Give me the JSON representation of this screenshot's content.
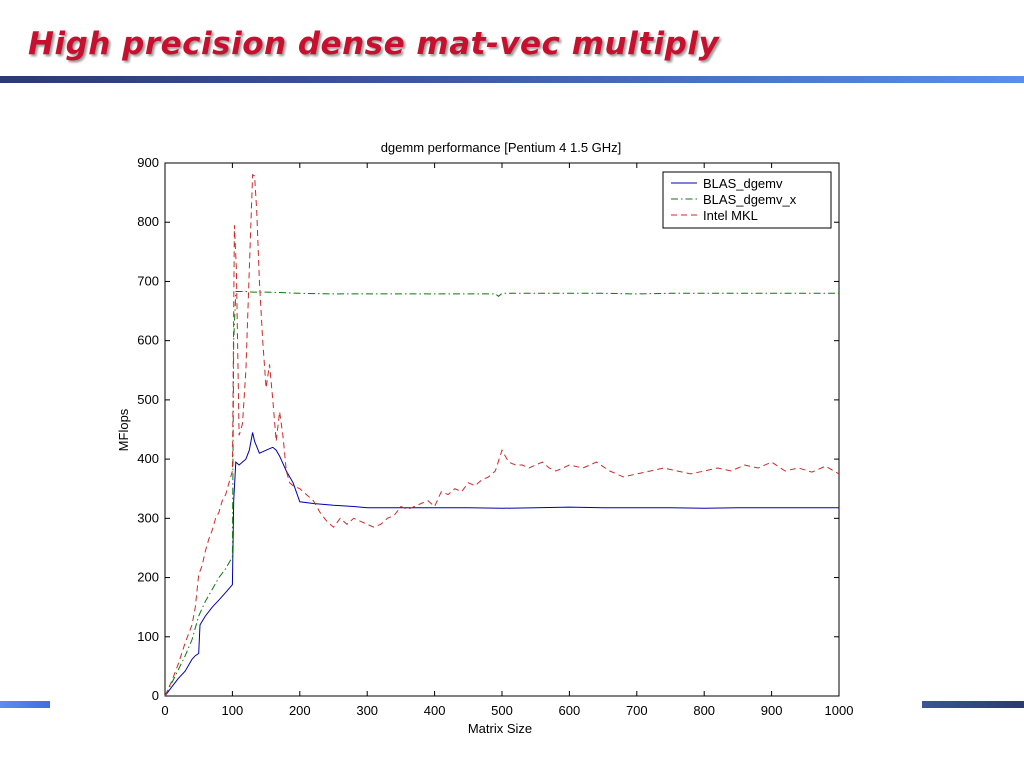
{
  "slide": {
    "title": "High precision dense mat-vec multiply",
    "accent_color": "#c8102e",
    "rule_color": "#2b3a6f"
  },
  "chart_data": {
    "type": "line",
    "title": "dgemm performance [Pentium 4 1.5 GHz]",
    "xlabel": "Matrix Size",
    "ylabel": "MFlops",
    "xlim": [
      0,
      1000
    ],
    "ylim": [
      0,
      900
    ],
    "xticks": [
      0,
      100,
      200,
      300,
      400,
      500,
      600,
      700,
      800,
      900,
      1000
    ],
    "yticks": [
      0,
      100,
      200,
      300,
      400,
      500,
      600,
      700,
      800,
      900
    ],
    "grid": false,
    "legend_position": "top-right",
    "series": [
      {
        "name": "BLAS_dgemv",
        "color": "#0000aa",
        "style": "solid",
        "x": [
          0,
          10,
          20,
          30,
          40,
          45,
          50,
          52,
          60,
          70,
          80,
          90,
          100,
          102,
          105,
          110,
          120,
          125,
          130,
          133,
          140,
          150,
          160,
          165,
          170,
          180,
          190,
          200,
          220,
          250,
          280,
          300,
          350,
          400,
          450,
          500,
          550,
          600,
          650,
          700,
          750,
          800,
          850,
          900,
          950,
          1000
        ],
        "y": [
          0,
          15,
          30,
          42,
          62,
          68,
          72,
          120,
          135,
          150,
          162,
          175,
          188,
          330,
          395,
          390,
          400,
          415,
          445,
          430,
          410,
          415,
          420,
          415,
          405,
          380,
          360,
          328,
          325,
          322,
          320,
          318,
          318,
          318,
          318,
          317,
          318,
          319,
          318,
          318,
          318,
          317,
          318,
          318,
          318,
          318
        ]
      },
      {
        "name": "BLAS_dgemv_x",
        "color": "#0a7a0a",
        "style": "dashdot",
        "x": [
          0,
          10,
          20,
          30,
          40,
          50,
          60,
          70,
          80,
          90,
          100,
          102,
          105,
          110,
          120,
          130,
          140,
          150,
          200,
          250,
          300,
          350,
          400,
          450,
          490,
          495,
          500,
          550,
          600,
          650,
          700,
          750,
          800,
          850,
          900,
          950,
          1000
        ],
        "y": [
          0,
          22,
          45,
          68,
          95,
          135,
          160,
          180,
          200,
          215,
          235,
          600,
          683,
          683,
          683,
          682,
          682,
          682,
          680,
          679,
          679,
          679,
          679,
          679,
          679,
          675,
          680,
          680,
          680,
          680,
          679,
          680,
          680,
          680,
          680,
          680,
          680
        ]
      },
      {
        "name": "Intel MKL",
        "color": "#cc2a2a",
        "style": "dashed",
        "x": [
          0,
          10,
          20,
          30,
          40,
          45,
          50,
          55,
          60,
          65,
          70,
          75,
          80,
          85,
          90,
          95,
          100,
          103,
          106,
          110,
          115,
          120,
          125,
          130,
          133,
          136,
          140,
          145,
          150,
          155,
          160,
          165,
          170,
          175,
          180,
          185,
          190,
          200,
          210,
          220,
          230,
          240,
          250,
          260,
          270,
          280,
          290,
          300,
          310,
          320,
          330,
          340,
          350,
          360,
          370,
          380,
          390,
          400,
          410,
          420,
          430,
          440,
          450,
          460,
          470,
          480,
          490,
          500,
          510,
          520,
          530,
          540,
          550,
          560,
          570,
          580,
          590,
          600,
          620,
          640,
          660,
          680,
          700,
          720,
          740,
          760,
          780,
          800,
          820,
          840,
          860,
          880,
          900,
          920,
          940,
          960,
          980,
          1000
        ],
        "y": [
          0,
          25,
          55,
          90,
          120,
          150,
          205,
          220,
          245,
          265,
          280,
          300,
          310,
          330,
          340,
          360,
          380,
          795,
          720,
          440,
          460,
          550,
          720,
          880,
          878,
          820,
          700,
          600,
          520,
          560,
          500,
          430,
          480,
          440,
          380,
          360,
          355,
          350,
          340,
          330,
          310,
          295,
          285,
          300,
          290,
          300,
          295,
          290,
          285,
          290,
          300,
          305,
          320,
          315,
          320,
          325,
          330,
          320,
          345,
          340,
          350,
          345,
          360,
          355,
          365,
          370,
          380,
          415,
          395,
          390,
          390,
          385,
          390,
          395,
          385,
          380,
          385,
          390,
          385,
          395,
          380,
          370,
          375,
          380,
          385,
          380,
          375,
          380,
          385,
          380,
          390,
          385,
          395,
          380,
          385,
          378,
          388,
          375
        ]
      }
    ]
  }
}
